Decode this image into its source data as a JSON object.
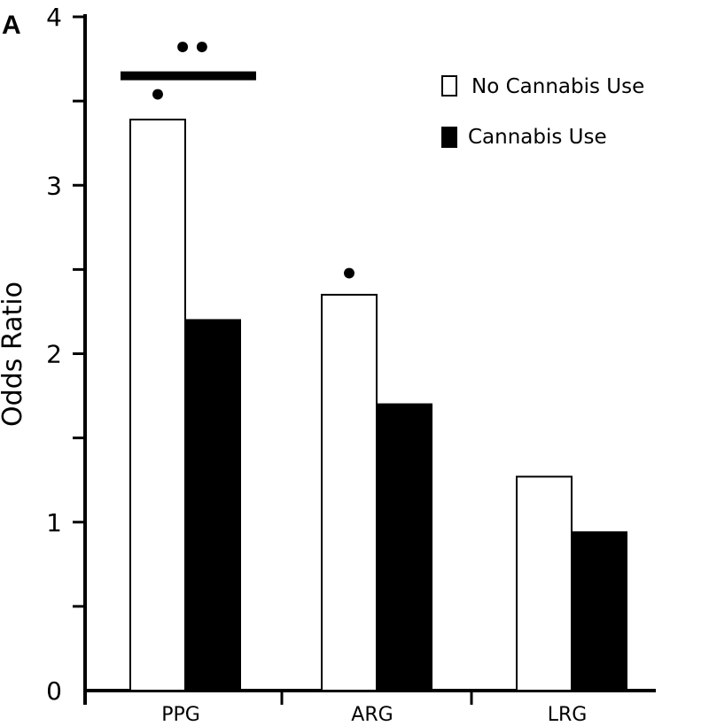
{
  "panel_label": "A",
  "colors": {
    "no_use_fill": "#ffffff",
    "use_fill": "#000000",
    "stroke": "#000000"
  },
  "chart_data": {
    "type": "bar",
    "title": "",
    "xlabel": "",
    "ylabel": "Odds Ratio",
    "ylim": [
      0,
      4
    ],
    "yticks": [
      0,
      1,
      2,
      3,
      4
    ],
    "categories": [
      "PPG",
      "ARG",
      "LRG"
    ],
    "series": [
      {
        "name": "No Cannabis Use",
        "values": [
          3.39,
          2.35,
          1.27
        ]
      },
      {
        "name": "Cannabis Use",
        "values": [
          2.2,
          1.7,
          0.94
        ]
      }
    ],
    "annotations": {
      "single_star": "•",
      "double_star": "••",
      "single_star_categories": [
        "PPG",
        "ARG"
      ],
      "bracket_category": "PPG",
      "bracket_value": 3.65
    },
    "legend": {
      "position": "top-right"
    }
  }
}
